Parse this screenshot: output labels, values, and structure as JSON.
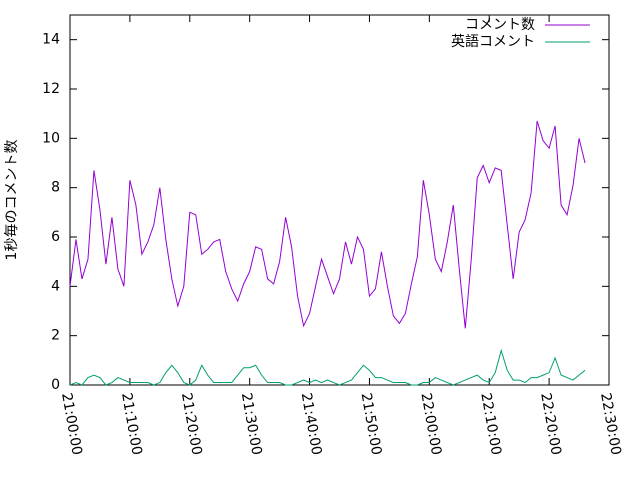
{
  "chart_data": {
    "type": "line",
    "y_label": "1秒毎のコメント数",
    "x": [
      "21:00:00",
      "21:01:00",
      "21:02:00",
      "21:03:00",
      "21:04:00",
      "21:05:00",
      "21:06:00",
      "21:07:00",
      "21:08:00",
      "21:09:00",
      "21:10:00",
      "21:11:00",
      "21:12:00",
      "21:13:00",
      "21:14:00",
      "21:15:00",
      "21:16:00",
      "21:17:00",
      "21:18:00",
      "21:19:00",
      "21:20:00",
      "21:21:00",
      "21:22:00",
      "21:23:00",
      "21:24:00",
      "21:25:00",
      "21:26:00",
      "21:27:00",
      "21:28:00",
      "21:29:00",
      "21:30:00",
      "21:31:00",
      "21:32:00",
      "21:33:00",
      "21:34:00",
      "21:35:00",
      "21:36:00",
      "21:37:00",
      "21:38:00",
      "21:39:00",
      "21:40:00",
      "21:41:00",
      "21:42:00",
      "21:43:00",
      "21:44:00",
      "21:45:00",
      "21:46:00",
      "21:47:00",
      "21:48:00",
      "21:49:00",
      "21:50:00",
      "21:51:00",
      "21:52:00",
      "21:53:00",
      "21:54:00",
      "21:55:00",
      "21:56:00",
      "21:57:00",
      "21:58:00",
      "21:59:00",
      "22:00:00",
      "22:01:00",
      "22:02:00",
      "22:03:00",
      "22:04:00",
      "22:05:00",
      "22:06:00",
      "22:07:00",
      "22:08:00",
      "22:09:00",
      "22:10:00",
      "22:11:00",
      "22:12:00",
      "22:13:00",
      "22:14:00",
      "22:15:00",
      "22:16:00",
      "22:17:00",
      "22:18:00",
      "22:19:00",
      "22:20:00",
      "22:21:00",
      "22:22:00",
      "22:23:00",
      "22:24:00",
      "22:25:00",
      "22:26:00"
    ],
    "series": [
      {
        "name": "コメント数",
        "color": "#9400d3",
        "values": [
          4.0,
          5.9,
          4.3,
          5.1,
          8.7,
          7.1,
          4.9,
          6.8,
          4.7,
          4.0,
          8.3,
          7.3,
          5.3,
          5.8,
          6.5,
          8.0,
          5.9,
          4.3,
          3.2,
          4.0,
          7.0,
          6.9,
          5.3,
          5.5,
          5.8,
          5.9,
          4.6,
          3.9,
          3.4,
          4.1,
          4.6,
          5.6,
          5.5,
          4.3,
          4.1,
          5.0,
          6.8,
          5.6,
          3.6,
          2.4,
          2.9,
          4.0,
          5.1,
          4.4,
          3.7,
          4.3,
          5.8,
          4.9,
          6.0,
          5.5,
          3.6,
          3.9,
          5.4,
          4.0,
          2.8,
          2.5,
          2.9,
          4.1,
          5.2,
          8.3,
          6.9,
          5.1,
          4.6,
          5.8,
          7.3,
          4.7,
          2.3,
          5.1,
          8.4,
          8.9,
          8.2,
          8.8,
          8.7,
          6.5,
          4.3,
          6.2,
          6.7,
          7.8,
          10.7,
          9.9,
          9.6,
          10.5,
          7.3,
          6.9,
          8.1,
          10.0,
          9.0
        ]
      },
      {
        "name": "英語コメント",
        "color": "#009e73",
        "values": [
          0,
          0.1,
          0,
          0.3,
          0.4,
          0.3,
          0,
          0.1,
          0.3,
          0.2,
          0.1,
          0.1,
          0.1,
          0.1,
          0,
          0.1,
          0.5,
          0.8,
          0.5,
          0.1,
          0,
          0.2,
          0.8,
          0.4,
          0.1,
          0.1,
          0.1,
          0.1,
          0.4,
          0.7,
          0.7,
          0.8,
          0.4,
          0.1,
          0.1,
          0.1,
          0,
          0,
          0.1,
          0.2,
          0.1,
          0.2,
          0.1,
          0.2,
          0.1,
          0,
          0.1,
          0.2,
          0.5,
          0.8,
          0.6,
          0.3,
          0.3,
          0.2,
          0.1,
          0.1,
          0.1,
          0,
          0,
          0.1,
          0.1,
          0.3,
          0.2,
          0.1,
          0,
          0.1,
          0.2,
          0.3,
          0.4,
          0.2,
          0.1,
          0.5,
          1.4,
          0.6,
          0.2,
          0.2,
          0.1,
          0.3,
          0.3,
          0.4,
          0.5,
          1.1,
          0.4,
          0.3,
          0.2,
          0.4,
          0.6
        ]
      }
    ],
    "xlim": [
      "21:00:00",
      "22:30:00"
    ],
    "xticks": [
      "21:00:00",
      "21:10:00",
      "21:20:00",
      "21:30:00",
      "21:40:00",
      "21:50:00",
      "22:00:00",
      "22:10:00",
      "22:20:00",
      "22:30:00"
    ],
    "ylim": [
      0,
      15
    ],
    "yticks": [
      0,
      2,
      4,
      6,
      8,
      10,
      12,
      14
    ],
    "legend": "top-right"
  }
}
